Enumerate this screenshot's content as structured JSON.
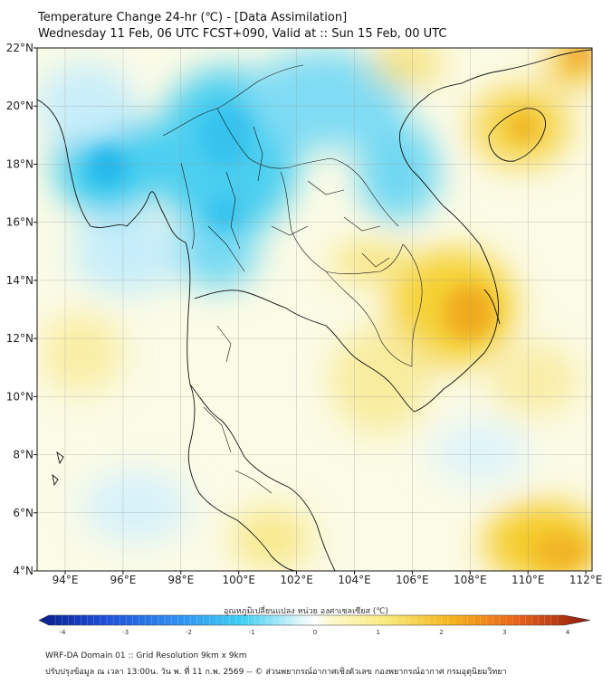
{
  "title": {
    "line1": "Temperature Change 24-hr (℃) - [Data Assimilation]",
    "line2": "Wednesday 11 Feb, 06 UTC FCST+090, Valid at :: Sun 15 Feb, 00 UTC"
  },
  "map": {
    "lat_labels": [
      "22°N",
      "20°N",
      "18°N",
      "16°N",
      "14°N",
      "12°N",
      "10°N",
      "8°N",
      "6°N",
      "4°N"
    ],
    "lon_labels": [
      "94°E",
      "96°E",
      "98°E",
      "100°E",
      "102°E",
      "104°E",
      "106°E",
      "108°E",
      "110°E",
      "112°E"
    ]
  },
  "colorbar": {
    "label": "อุณหภูมิเปลี่ยนแปลง หน่วย องศาเซลเซียส (℃)",
    "ticks": [
      "-4",
      "-3",
      "-2",
      "-1",
      "0",
      "1",
      "2",
      "3",
      "4"
    ]
  },
  "footer": {
    "line1": "WRF-DA Domain 01 :: Grid Resolution 9km x 9km",
    "line2": "ปรับปรุงข้อมูล ณ เวลา 13:00น. วัน พ. ที่ 11 ก.พ. 2569 -- © ส่วนพยากรณ์อากาศเชิงตัวเลข กองพยากรณ์อากาศ กรมอุตุนิยมวิทยา"
  },
  "colors": {
    "background": "#ffffff",
    "map_base": "#fbfbe6",
    "cold": "#29c8ee",
    "warm": "#f5c418",
    "warm_core": "#f0a81a"
  }
}
